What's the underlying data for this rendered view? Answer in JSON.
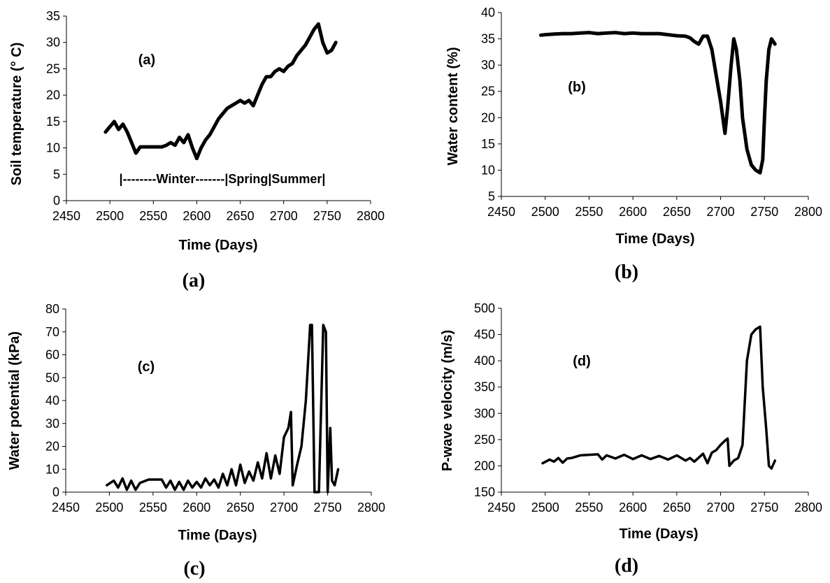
{
  "chart_data": [
    {
      "type": "line",
      "panel_label": "(a)",
      "caption": "(a)",
      "xlabel": "Time (Days)",
      "ylabel": "Soil temperature (° C)",
      "xlim": [
        2450,
        2800
      ],
      "ylim": [
        0,
        35
      ],
      "x_ticks": [
        2450,
        2500,
        2550,
        2600,
        2650,
        2700,
        2750,
        2800
      ],
      "y_ticks": [
        0,
        5,
        10,
        15,
        20,
        25,
        30,
        35
      ],
      "annotation": "|--------Winter-------|Spring|Summer|",
      "series": [
        {
          "name": "Soil temperature",
          "x": [
            2495,
            2500,
            2505,
            2510,
            2515,
            2520,
            2525,
            2530,
            2535,
            2540,
            2545,
            2550,
            2555,
            2560,
            2565,
            2570,
            2575,
            2580,
            2585,
            2590,
            2595,
            2600,
            2605,
            2610,
            2615,
            2620,
            2625,
            2630,
            2635,
            2640,
            2645,
            2650,
            2655,
            2660,
            2665,
            2670,
            2675,
            2680,
            2685,
            2690,
            2695,
            2700,
            2705,
            2710,
            2715,
            2720,
            2725,
            2730,
            2735,
            2740,
            2745,
            2750,
            2755,
            2760
          ],
          "y": [
            13,
            14,
            15,
            13.5,
            14.5,
            13,
            11,
            9,
            10.2,
            10.2,
            10.2,
            10.2,
            10.2,
            10.2,
            10.5,
            11,
            10.5,
            12,
            11,
            12.5,
            10,
            8,
            10,
            11.5,
            12.5,
            14,
            15.5,
            16.5,
            17.5,
            18,
            18.5,
            19,
            18.5,
            19,
            18,
            20,
            22,
            23.5,
            23.5,
            24.5,
            25,
            24.5,
            25.5,
            26,
            27.5,
            28.5,
            29.5,
            31,
            32.5,
            33.5,
            30,
            28,
            28.5,
            30
          ]
        }
      ]
    },
    {
      "type": "line",
      "panel_label": "(b)",
      "caption": "(b)",
      "xlabel": "Time (Days)",
      "ylabel": "Water content (%)",
      "xlim": [
        2450,
        2800
      ],
      "ylim": [
        5,
        40
      ],
      "x_ticks": [
        2450,
        2500,
        2550,
        2600,
        2650,
        2700,
        2750,
        2800
      ],
      "y_ticks": [
        5,
        10,
        15,
        20,
        25,
        30,
        35,
        40
      ],
      "series": [
        {
          "name": "Water content",
          "x": [
            2495,
            2500,
            2510,
            2520,
            2530,
            2540,
            2550,
            2560,
            2570,
            2580,
            2590,
            2600,
            2610,
            2620,
            2630,
            2640,
            2650,
            2660,
            2665,
            2670,
            2675,
            2680,
            2685,
            2690,
            2695,
            2700,
            2705,
            2708,
            2712,
            2715,
            2718,
            2722,
            2725,
            2730,
            2735,
            2740,
            2745,
            2748,
            2750,
            2752,
            2755,
            2758,
            2762
          ],
          "y": [
            35.7,
            35.8,
            35.9,
            36,
            36,
            36.1,
            36.2,
            36,
            36.1,
            36.2,
            36,
            36.1,
            36,
            36,
            36,
            35.8,
            35.6,
            35.5,
            35.2,
            34.5,
            34,
            35.5,
            35.5,
            33,
            28,
            23,
            17,
            22,
            30,
            35,
            33,
            27,
            20,
            14,
            11,
            10,
            9.5,
            12,
            20,
            27,
            33,
            35,
            34
          ]
        }
      ]
    },
    {
      "type": "line",
      "panel_label": "(c)",
      "caption": "(c)",
      "xlabel": "Time (Days)",
      "ylabel": "Water potential (kPa)",
      "xlim": [
        2450,
        2800
      ],
      "ylim": [
        0,
        80
      ],
      "x_ticks": [
        2450,
        2500,
        2550,
        2600,
        2650,
        2700,
        2750,
        2800
      ],
      "y_ticks": [
        0,
        10,
        20,
        30,
        40,
        50,
        60,
        70,
        80
      ],
      "series": [
        {
          "name": "Water potential",
          "x": [
            2497,
            2505,
            2510,
            2515,
            2520,
            2525,
            2530,
            2535,
            2545,
            2560,
            2565,
            2570,
            2575,
            2580,
            2585,
            2590,
            2595,
            2600,
            2605,
            2610,
            2615,
            2620,
            2625,
            2630,
            2635,
            2640,
            2645,
            2650,
            2655,
            2660,
            2665,
            2670,
            2675,
            2680,
            2685,
            2690,
            2695,
            2700,
            2705,
            2708,
            2710,
            2715,
            2720,
            2725,
            2730,
            2732,
            2735,
            2740,
            2745,
            2748,
            2750,
            2753,
            2755,
            2758,
            2762
          ],
          "y": [
            3,
            5,
            2,
            6,
            1,
            5,
            1,
            4,
            5.5,
            5.5,
            2,
            5,
            1,
            4.5,
            1,
            5,
            2,
            4.5,
            2,
            6,
            3,
            5.5,
            2,
            8,
            3,
            10,
            3,
            12,
            4,
            9,
            5,
            13,
            6,
            17,
            6,
            16,
            8,
            24,
            28,
            35,
            3,
            12,
            20,
            40,
            73,
            73,
            0,
            0,
            73,
            70,
            0,
            28,
            5,
            3,
            10
          ]
        }
      ]
    },
    {
      "type": "line",
      "panel_label": "(d)",
      "caption": "(d)",
      "xlabel": "Time (Days)",
      "ylabel": "P-wave velocity (m/s)",
      "xlim": [
        2450,
        2800
      ],
      "ylim": [
        150,
        500
      ],
      "x_ticks": [
        2450,
        2500,
        2550,
        2600,
        2650,
        2700,
        2750,
        2800
      ],
      "y_ticks": [
        150,
        200,
        250,
        300,
        350,
        400,
        450,
        500
      ],
      "series": [
        {
          "name": "P-wave velocity",
          "x": [
            2497,
            2505,
            2510,
            2515,
            2520,
            2525,
            2530,
            2540,
            2560,
            2565,
            2570,
            2580,
            2590,
            2600,
            2610,
            2620,
            2630,
            2640,
            2650,
            2660,
            2665,
            2670,
            2680,
            2685,
            2690,
            2695,
            2700,
            2705,
            2708,
            2710,
            2715,
            2720,
            2725,
            2730,
            2735,
            2740,
            2745,
            2748,
            2752,
            2755,
            2758,
            2762
          ],
          "y": [
            205,
            212,
            208,
            215,
            206,
            214,
            215,
            220,
            222,
            212,
            220,
            214,
            221,
            213,
            220,
            213,
            219,
            212,
            220,
            210,
            215,
            208,
            223,
            205,
            225,
            230,
            240,
            248,
            252,
            200,
            210,
            215,
            240,
            400,
            450,
            460,
            465,
            350,
            270,
            200,
            195,
            210
          ]
        }
      ]
    }
  ]
}
